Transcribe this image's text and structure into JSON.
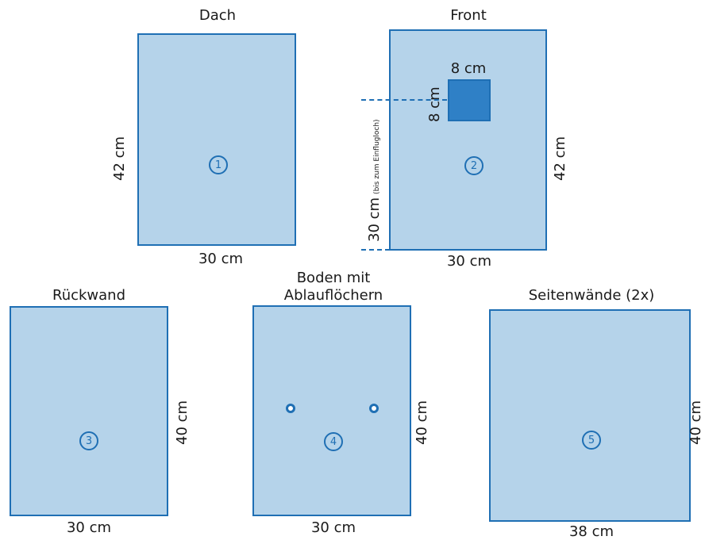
{
  "colors": {
    "panel_fill": "#b5d3ea",
    "panel_border": "#1f6fb4",
    "entry_hole_fill": "#2f80c6"
  },
  "panels": {
    "dach": {
      "title": "Dach",
      "width": "30 cm",
      "height": "42 cm",
      "number": "1"
    },
    "front": {
      "title": "Front",
      "width": "30 cm",
      "height": "42 cm",
      "number": "2",
      "hole_width": "8 cm",
      "hole_height": "8 cm",
      "hole_distance": "30 cm",
      "hole_distance_note": "(bis zum Einflugloch)"
    },
    "rueckwand": {
      "title": "Rückwand",
      "width": "30 cm",
      "height": "40 cm",
      "number": "3"
    },
    "boden": {
      "title_line1": "Boden mit",
      "title_line2": "Ablauflöchern",
      "width": "30 cm",
      "height": "40 cm",
      "number": "4"
    },
    "seitenwaende": {
      "title": "Seitenwände (2x)",
      "width": "38 cm",
      "height": "40 cm",
      "number": "5"
    }
  }
}
